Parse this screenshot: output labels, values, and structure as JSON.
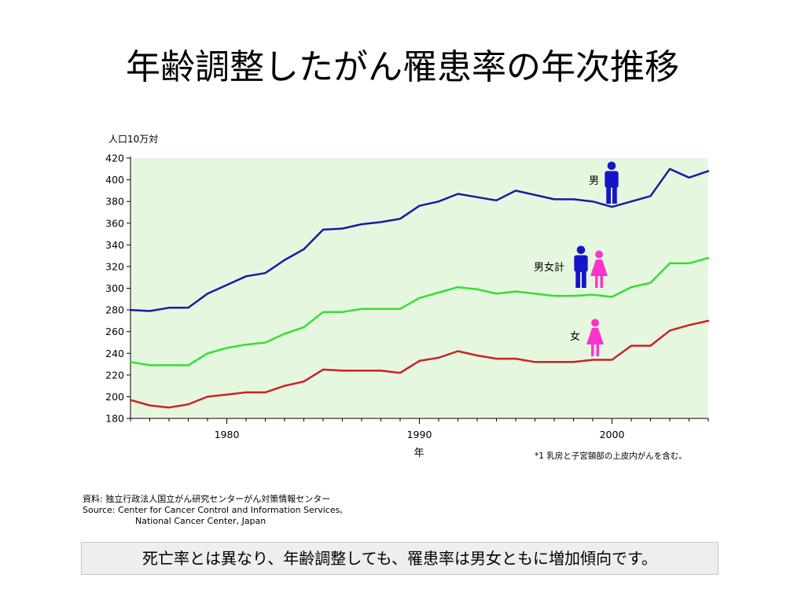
{
  "slide": {
    "title": "年齢調整したがん罹患率の年次推移",
    "caption": "死亡率とは異なり、年齢調整しても、罹患率は男女ともに増加傾向です。"
  },
  "source": {
    "line1": "資料: 独立行政法人国立がん研究センターがん対策情報センター",
    "line2": "Source: Center for Cancer Control and Information Services,",
    "line3": "National Cancer Center, Japan"
  },
  "chart_data": {
    "type": "line",
    "title": "",
    "ylabel": "人口10万対",
    "xlabel": "年",
    "footnote": "*1 乳房と子宮頸部の上皮内がんを含む。",
    "xlim": [
      1975,
      2005
    ],
    "ylim": [
      180,
      420
    ],
    "x_ticks": [
      1980,
      1990,
      2000
    ],
    "y_ticks": [
      180,
      200,
      220,
      240,
      260,
      280,
      300,
      320,
      340,
      360,
      380,
      400,
      420
    ],
    "grid": false,
    "background": "#e6f7e0",
    "x": [
      1975,
      1976,
      1977,
      1978,
      1979,
      1980,
      1981,
      1982,
      1983,
      1984,
      1985,
      1986,
      1987,
      1988,
      1989,
      1990,
      1991,
      1992,
      1993,
      1994,
      1995,
      1996,
      1997,
      1998,
      1999,
      2000,
      2001,
      2002,
      2003,
      2004,
      2005
    ],
    "series": [
      {
        "name": "男",
        "color": "#1a1aa6",
        "values": [
          280,
          279,
          282,
          282,
          295,
          303,
          311,
          314,
          326,
          336,
          354,
          355,
          359,
          361,
          364,
          376,
          380,
          387,
          384,
          381,
          390,
          386,
          382,
          382,
          380,
          375,
          380,
          385,
          410,
          402,
          408
        ]
      },
      {
        "name": "男女計",
        "color": "#33e033",
        "values": [
          232,
          229,
          229,
          229,
          240,
          245,
          248,
          250,
          258,
          264,
          278,
          278,
          281,
          281,
          281,
          291,
          296,
          301,
          299,
          295,
          297,
          295,
          293,
          293,
          294,
          292,
          301,
          305,
          323,
          323,
          328
        ]
      },
      {
        "name": "女",
        "color": "#cc2222",
        "values": [
          197,
          192,
          190,
          193,
          200,
          202,
          204,
          204,
          210,
          214,
          225,
          224,
          224,
          224,
          222,
          233,
          236,
          242,
          238,
          235,
          235,
          232,
          232,
          232,
          234,
          234,
          247,
          247,
          261,
          266,
          270
        ]
      }
    ],
    "legend_icons": {
      "male_color": "#1515c8",
      "female_color": "#ff33cc"
    }
  }
}
